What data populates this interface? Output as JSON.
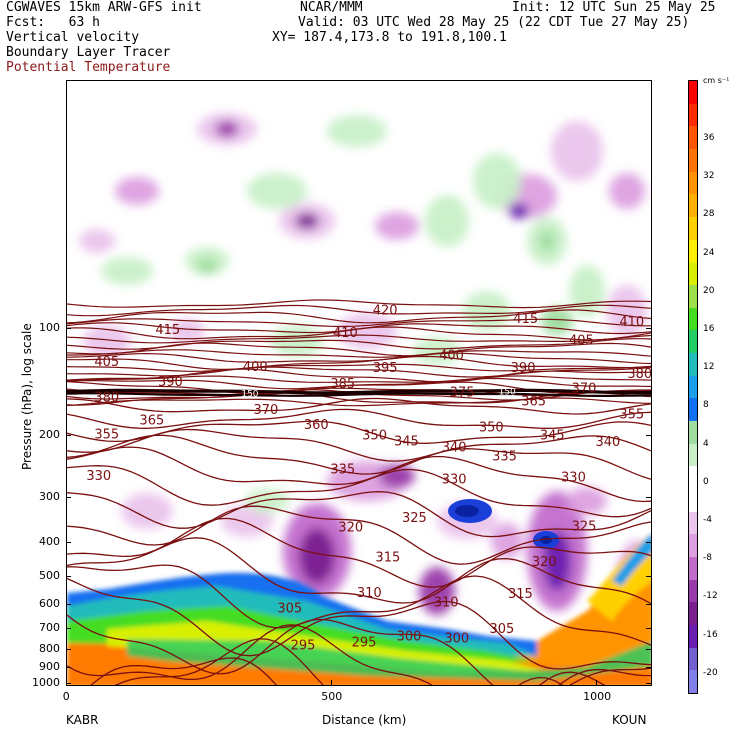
{
  "header": {
    "model": "CGWAVES 15km ARW-GFS init",
    "org": "NCAR/MMM",
    "init": "Init: 12 UTC Sun 25 May 25",
    "fcst": "Fcst:   63 h",
    "valid": "Valid: 03 UTC Wed 28 May 25 (22 CDT Tue 27 May 25)",
    "field1": "Vertical velocity",
    "xy": "XY= 187.4,173.8 to 191.8,100.1",
    "field2": "Boundary Layer Tracer",
    "field3": "Potential Temperature"
  },
  "chart_data": {
    "type": "heatmap",
    "title": "",
    "xlabel": "Distance (km)",
    "ylabel": "Pressure (hPa), log scale",
    "x_ticks": [
      "0",
      "500",
      "1000"
    ],
    "x_tick_values": [
      0,
      500,
      1000
    ],
    "xlim": [
      0,
      1105
    ],
    "y_ticks": [
      "100",
      "200",
      "300",
      "400",
      "500",
      "600",
      "700",
      "800",
      "900",
      "1000"
    ],
    "y_tick_values": [
      100,
      200,
      300,
      400,
      500,
      600,
      700,
      800,
      900,
      1000
    ],
    "ylim": [
      1020,
      20
    ],
    "y_scale": "log",
    "x_start_label": "KABR",
    "x_end_label": "KOUN",
    "colorbar": {
      "unit": "cm s⁻¹",
      "labels": [
        "36",
        "32",
        "28",
        "24",
        "20",
        "16",
        "12",
        "8",
        "4",
        "0",
        "-4",
        "-8",
        "-12",
        "-16",
        "-20"
      ],
      "colors": [
        "#ff0000",
        "#ff2a00",
        "#ff5500",
        "#ff7300",
        "#ff9400",
        "#ffb000",
        "#ffd000",
        "#fff000",
        "#d8f000",
        "#9ee04a",
        "#44dd22",
        "#22cc66",
        "#22bbbb",
        "#1a9fe8",
        "#1470f0",
        "#9fdc9f",
        "#c8f0c8",
        "#ffffff",
        "#ffffff",
        "#eac4ec",
        "#dca0e0",
        "#c26ccc",
        "#9a3aaa",
        "#7a1e90",
        "#6a1fb0",
        "#7060d0",
        "#8080e8"
      ]
    },
    "theta_labels": [
      {
        "value": "420",
        "x": 600,
        "p": 88
      },
      {
        "value": "415",
        "x": 190,
        "p": 100
      },
      {
        "value": "415",
        "x": 865,
        "p": 93
      },
      {
        "value": "410",
        "x": 525,
        "p": 102
      },
      {
        "value": "410",
        "x": 1065,
        "p": 95
      },
      {
        "value": "405",
        "x": 75,
        "p": 123
      },
      {
        "value": "405",
        "x": 970,
        "p": 107
      },
      {
        "value": "400",
        "x": 355,
        "p": 127
      },
      {
        "value": "400",
        "x": 725,
        "p": 118
      },
      {
        "value": "395",
        "x": 600,
        "p": 128
      },
      {
        "value": "390",
        "x": 195,
        "p": 140
      },
      {
        "value": "390",
        "x": 860,
        "p": 128
      },
      {
        "value": "385",
        "x": 520,
        "p": 142
      },
      {
        "value": "380",
        "x": 75,
        "p": 155
      },
      {
        "value": "380",
        "x": 1080,
        "p": 133
      },
      {
        "value": "375",
        "x": 745,
        "p": 150
      },
      {
        "value": "370",
        "x": 375,
        "p": 168
      },
      {
        "value": "370",
        "x": 975,
        "p": 146
      },
      {
        "value": "365",
        "x": 160,
        "p": 180
      },
      {
        "value": "365",
        "x": 880,
        "p": 159
      },
      {
        "value": "360",
        "x": 470,
        "p": 185
      },
      {
        "value": "355",
        "x": 75,
        "p": 197
      },
      {
        "value": "355",
        "x": 1065,
        "p": 173
      },
      {
        "value": "350",
        "x": 580,
        "p": 198
      },
      {
        "value": "350",
        "x": 800,
        "p": 188
      },
      {
        "value": "345",
        "x": 640,
        "p": 206
      },
      {
        "value": "345",
        "x": 915,
        "p": 198
      },
      {
        "value": "340",
        "x": 730,
        "p": 214
      },
      {
        "value": "340",
        "x": 1020,
        "p": 207
      },
      {
        "value": "335",
        "x": 520,
        "p": 247
      },
      {
        "value": "335",
        "x": 825,
        "p": 227
      },
      {
        "value": "330",
        "x": 60,
        "p": 258
      },
      {
        "value": "330",
        "x": 730,
        "p": 264
      },
      {
        "value": "330",
        "x": 955,
        "p": 260
      },
      {
        "value": "325",
        "x": 655,
        "p": 338
      },
      {
        "value": "325",
        "x": 975,
        "p": 358
      },
      {
        "value": "320",
        "x": 535,
        "p": 360
      },
      {
        "value": "320",
        "x": 900,
        "p": 450
      },
      {
        "value": "315",
        "x": 605,
        "p": 437
      },
      {
        "value": "315",
        "x": 855,
        "p": 555
      },
      {
        "value": "310",
        "x": 570,
        "p": 550
      },
      {
        "value": "310",
        "x": 715,
        "p": 585
      },
      {
        "value": "305",
        "x": 420,
        "p": 608
      },
      {
        "value": "305",
        "x": 820,
        "p": 695
      },
      {
        "value": "300",
        "x": 645,
        "p": 730
      },
      {
        "value": "300",
        "x": 735,
        "p": 740
      },
      {
        "value": "295",
        "x": 445,
        "p": 775
      },
      {
        "value": "295",
        "x": 560,
        "p": 760
      }
    ],
    "tropopause_labels": [
      {
        "value": "150",
        "x": 345,
        "p": 152
      },
      {
        "value": "150",
        "x": 830,
        "p": 150
      }
    ]
  }
}
